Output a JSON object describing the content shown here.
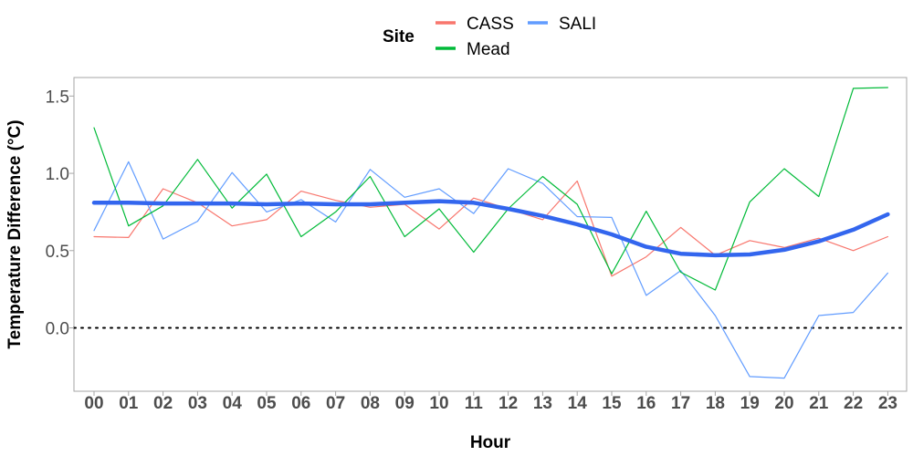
{
  "chart_data": {
    "type": "line",
    "xlabel": "Hour",
    "ylabel": "Temperature Difference (°C)",
    "x": [
      "00",
      "01",
      "02",
      "03",
      "04",
      "05",
      "06",
      "07",
      "08",
      "09",
      "10",
      "11",
      "12",
      "13",
      "14",
      "15",
      "16",
      "17",
      "18",
      "19",
      "20",
      "21",
      "22",
      "23"
    ],
    "yticks": [
      "0.0",
      "0.5",
      "1.0",
      "1.5"
    ],
    "ytick_values": [
      0,
      0.5,
      1.0,
      1.5
    ],
    "ylim": [
      -0.41,
      1.62
    ],
    "reference_line": {
      "y": 0,
      "style": "dotted"
    },
    "grid": false,
    "legend": {
      "title": "Site",
      "position": "top",
      "entries": [
        {
          "label": "CASS",
          "color": "#F8766D"
        },
        {
          "label": "SALI",
          "color": "#619CFF"
        },
        {
          "label": "Mead",
          "color": "#00BA38"
        }
      ]
    },
    "series": [
      {
        "name": "CASS",
        "color": "#F8766D",
        "values": [
          0.59,
          0.585,
          0.9,
          0.81,
          0.66,
          0.7,
          0.885,
          0.825,
          0.78,
          0.8,
          0.64,
          0.84,
          0.77,
          0.7,
          0.95,
          0.335,
          0.46,
          0.65,
          0.47,
          0.565,
          0.52,
          0.58,
          0.5,
          0.59
        ]
      },
      {
        "name": "SALI",
        "color": "#619CFF",
        "values": [
          0.63,
          1.075,
          0.575,
          0.69,
          1.005,
          0.75,
          0.83,
          0.685,
          1.025,
          0.845,
          0.9,
          0.74,
          1.03,
          0.935,
          0.72,
          0.715,
          0.21,
          0.37,
          0.08,
          -0.315,
          -0.325,
          0.08,
          0.1,
          0.355
        ]
      },
      {
        "name": "Mead",
        "color": "#00BA38",
        "values": [
          1.295,
          0.66,
          0.79,
          1.09,
          0.775,
          0.995,
          0.59,
          0.75,
          0.98,
          0.59,
          0.77,
          0.49,
          0.77,
          0.98,
          0.8,
          0.35,
          0.755,
          0.36,
          0.245,
          0.815,
          1.03,
          0.85,
          1.55,
          1.555
        ]
      },
      {
        "color": "#3366EE",
        "role": "smooth",
        "values": [
          0.81,
          0.81,
          0.805,
          0.805,
          0.805,
          0.8,
          0.805,
          0.8,
          0.8,
          0.81,
          0.82,
          0.81,
          0.77,
          0.725,
          0.67,
          0.605,
          0.525,
          0.48,
          0.47,
          0.475,
          0.505,
          0.56,
          0.635,
          0.735
        ]
      }
    ]
  }
}
